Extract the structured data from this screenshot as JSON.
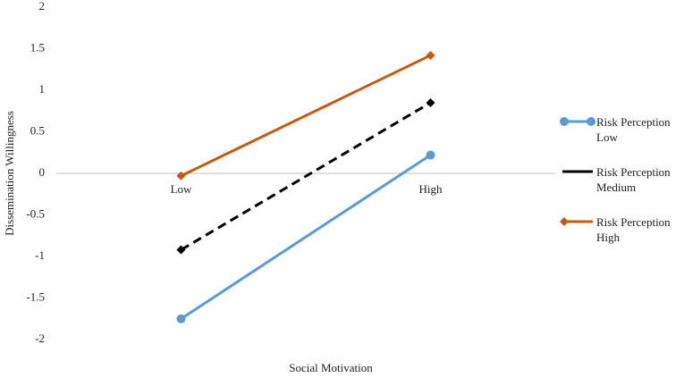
{
  "chart_data": {
    "type": "line",
    "x_label": "Social Motivation",
    "y_label": "Dissemination Willingness",
    "categories": [
      "Low",
      "High"
    ],
    "series": [
      {
        "name": "Risk Perception Low",
        "color": "#5b9bd5",
        "dash": false,
        "marker": "circle",
        "values": [
          -1.75,
          0.22
        ]
      },
      {
        "name": "Risk Perception Medium",
        "color": "#000000",
        "dash": true,
        "marker": "diamond",
        "values": [
          -0.92,
          0.85
        ]
      },
      {
        "name": "Risk Perception High",
        "color": "#c55a11",
        "dash": false,
        "marker": "diamond",
        "values": [
          -0.03,
          1.42
        ]
      }
    ],
    "ylim": [
      -2,
      2
    ],
    "yticks": [
      2,
      1.5,
      1,
      0.5,
      0,
      -0.5,
      -1,
      -1.5,
      -2
    ],
    "grid": false,
    "legend": "right"
  }
}
